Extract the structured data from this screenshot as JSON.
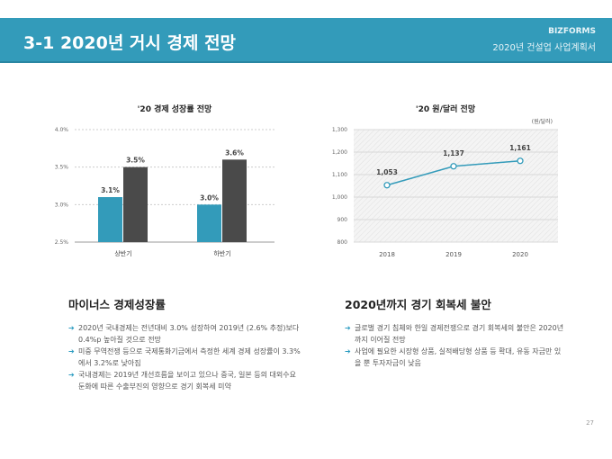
{
  "header": {
    "title": "3-1 2020년 거시 경제 전망",
    "brand": "BIZFORMS",
    "subtitle": "2020년 건설업 사업계획서"
  },
  "colors": {
    "accent": "#339bba",
    "dark": "#4a4a4a"
  },
  "chart_data": [
    {
      "type": "bar",
      "title": "'20 경제 성장률 전망",
      "categories": [
        "상반기",
        "하반기"
      ],
      "series": [
        {
          "name": "series1",
          "values": [
            3.1,
            3.0
          ],
          "color": "#339bba"
        },
        {
          "name": "series2",
          "values": [
            3.5,
            3.6
          ],
          "color": "#4a4a4a"
        }
      ],
      "data_labels": [
        [
          "3.1%",
          "3.0%"
        ],
        [
          "3.5%",
          "3.6%"
        ]
      ],
      "yticks": [
        "2.5%",
        "3.0%",
        "3.5%",
        "4.0%"
      ],
      "ylim": [
        2.5,
        4.0
      ],
      "grid": true
    },
    {
      "type": "line",
      "title": "'20 원/달러 전망",
      "unit": "(원/달러)",
      "categories": [
        "2018",
        "2019",
        "2020"
      ],
      "values": [
        1053,
        1137,
        1161
      ],
      "data_labels": [
        "1,053",
        "1,137",
        "1,161"
      ],
      "yticks": [
        "800",
        "900",
        "1,000",
        "1,100",
        "1,200",
        "1,300"
      ],
      "ylim": [
        800,
        1300
      ],
      "grid": true
    }
  ],
  "left": {
    "title": "마이너스 경제성장률",
    "bullets": [
      "2020년 국내경제는 전년대비 3.0% 성장하여 2019년 (2.6% 추정)보다 0.4%p 높아질 것으로 전망",
      "미중 무역전쟁 등으로 국제통화기금에서 측정한 세계 경제 성장률이 3.3%에서 3.2%로 낮아짐",
      "국내경제는 2019년 개선흐름을 보이고 있으나 중국, 일본 등의 대외수요 둔화에 따른 수출부진의 영향으로 경기 회복세 미약"
    ]
  },
  "right": {
    "title": "2020년까지 경기 회복세 불안",
    "bullets": [
      "글로벌 경기 침체와 한일 경제전쟁으로 경기 회복세의 불안은 2020년까지 이어질 전망",
      "사업에 필요한 시장형 상품, 실적배당형 상품 등 확대, 유동 자금만 있을 뿐 투자자금이 낮음"
    ]
  },
  "page_number": "27"
}
